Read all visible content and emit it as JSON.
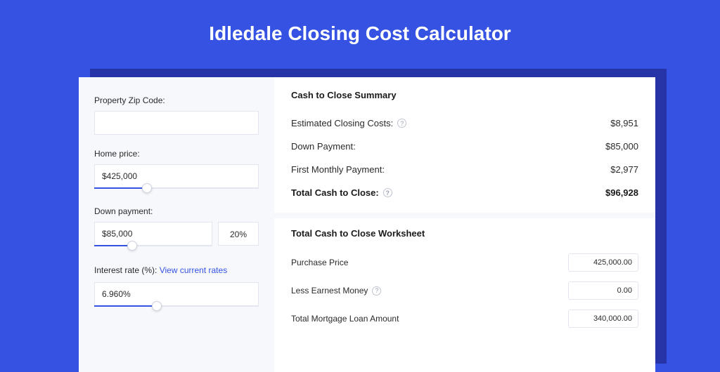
{
  "colors": {
    "page_bg": "#3652e3",
    "shadow_bg": "#2734a8",
    "card_bg": "#ffffff",
    "left_bg": "#f6f8fc",
    "border": "#e3e6ef",
    "text": "#2a2a2a",
    "text_strong": "#1a1a1a",
    "link": "#3652e3",
    "accent": "#3652e3",
    "help_border": "#c0c4d0",
    "help_text": "#9aa0b0"
  },
  "title": "Idledale Closing Cost Calculator",
  "left": {
    "zip": {
      "label": "Property Zip Code:",
      "value": ""
    },
    "home_price": {
      "label": "Home price:",
      "value": "$425,000",
      "slider_fill_pct": 32
    },
    "down_payment": {
      "label": "Down payment:",
      "value": "$85,000",
      "pct": "20%",
      "slider_fill_pct": 32
    },
    "interest": {
      "label": "Interest rate (%): ",
      "link_text": "View current rates",
      "value": "6.960%",
      "slider_fill_pct": 38
    }
  },
  "summary": {
    "title": "Cash to Close Summary",
    "rows": [
      {
        "label": "Estimated Closing Costs:",
        "help": true,
        "value": "$8,951",
        "bold": false
      },
      {
        "label": "Down Payment:",
        "help": false,
        "value": "$85,000",
        "bold": false
      },
      {
        "label": "First Monthly Payment:",
        "help": false,
        "value": "$2,977",
        "bold": false
      },
      {
        "label": "Total Cash to Close:",
        "help": true,
        "value": "$96,928",
        "bold": true
      }
    ]
  },
  "worksheet": {
    "title": "Total Cash to Close Worksheet",
    "rows": [
      {
        "label": "Purchase Price",
        "help": false,
        "value": "425,000.00"
      },
      {
        "label": "Less Earnest Money",
        "help": true,
        "value": "0.00"
      },
      {
        "label": "Total Mortgage Loan Amount",
        "help": false,
        "value": "340,000.00"
      }
    ]
  }
}
